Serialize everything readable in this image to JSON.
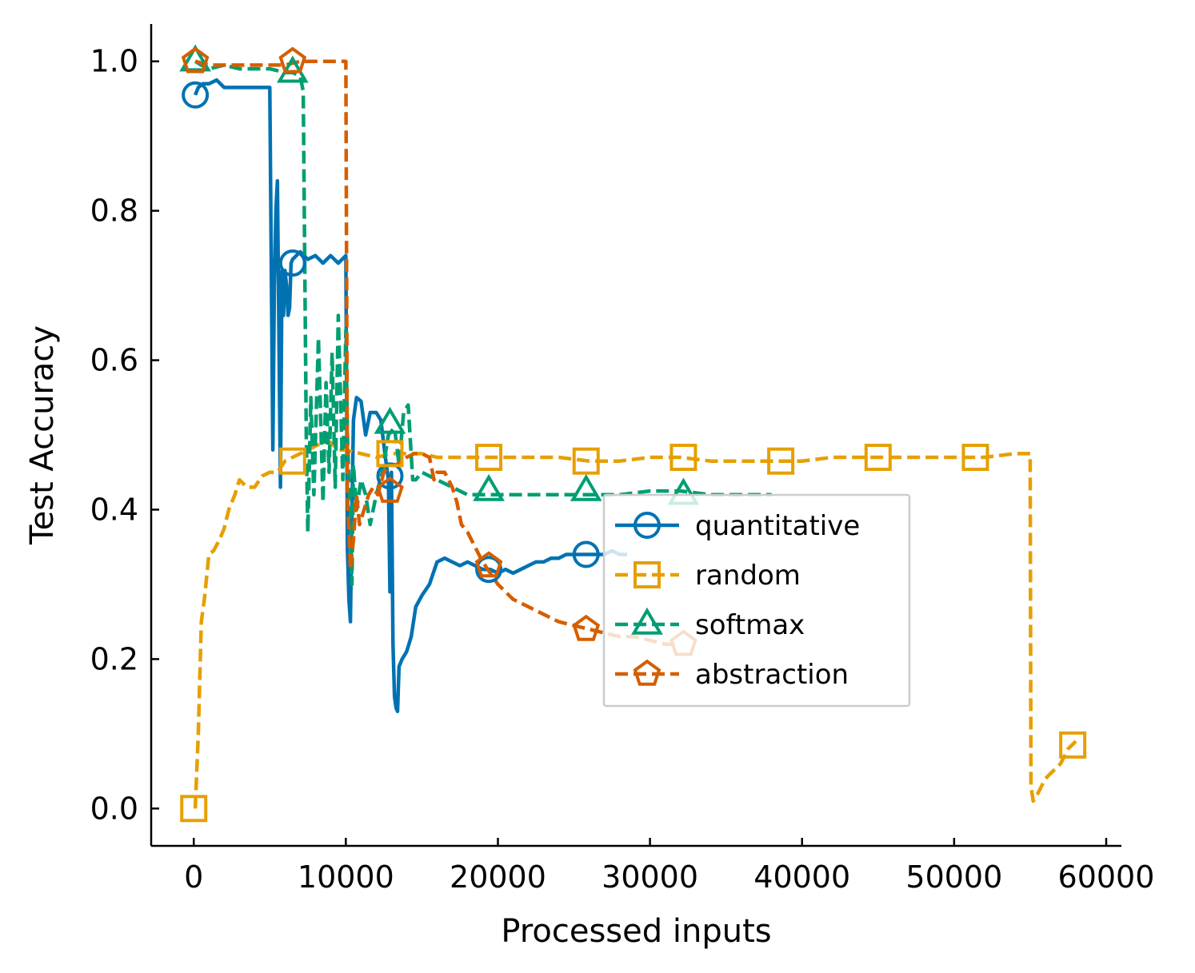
{
  "chart_data": {
    "type": "line",
    "xlabel": "Processed inputs",
    "ylabel": "Test Accuracy",
    "xlim": [
      -2800,
      61000
    ],
    "ylim": [
      -0.05,
      1.05
    ],
    "xticks": [
      0,
      10000,
      20000,
      30000,
      40000,
      50000,
      60000
    ],
    "yticks": [
      0.0,
      0.2,
      0.4,
      0.6,
      0.8,
      1.0
    ],
    "xtick_labels": [
      "0",
      "10000",
      "20000",
      "30000",
      "40000",
      "50000",
      "60000"
    ],
    "ytick_labels": [
      "0.0",
      "0.2",
      "0.4",
      "0.6",
      "0.8",
      "1.0"
    ],
    "grid": false,
    "legend_position": "center-right",
    "series": [
      {
        "name": "quantitative",
        "color": "#0072B2",
        "dash": "solid",
        "marker": "circle",
        "x": [
          100,
          300,
          600,
          1000,
          1500,
          2000,
          2500,
          3000,
          3500,
          4000,
          4500,
          5000,
          5200,
          5300,
          5400,
          5500,
          5700,
          5800,
          5900,
          6000,
          6100,
          6200,
          6300,
          6400,
          6500,
          7000,
          7500,
          8000,
          8500,
          9000,
          9500,
          10000,
          10100,
          10200,
          10300,
          10400,
          10500,
          10700,
          11000,
          11300,
          11600,
          12000,
          12300,
          12600,
          12800,
          12900,
          13000,
          13100,
          13200,
          13300,
          13400,
          13500,
          13700,
          14000,
          14300,
          14600,
          15000,
          15500,
          16000,
          16500,
          17000,
          17500,
          18000,
          18500,
          19000,
          19500,
          20000,
          20500,
          21000,
          21500,
          22000,
          22500,
          23000,
          23500,
          24000,
          24500,
          25000,
          25500,
          26000,
          26500,
          27000,
          27500,
          28000,
          28500
        ],
        "y": [
          0.955,
          0.965,
          0.97,
          0.97,
          0.975,
          0.965,
          0.965,
          0.965,
          0.965,
          0.965,
          0.965,
          0.965,
          0.48,
          0.7,
          0.8,
          0.84,
          0.43,
          0.72,
          0.66,
          0.72,
          0.7,
          0.66,
          0.67,
          0.73,
          0.735,
          0.745,
          0.735,
          0.74,
          0.73,
          0.74,
          0.73,
          0.74,
          0.35,
          0.28,
          0.25,
          0.4,
          0.52,
          0.55,
          0.545,
          0.5,
          0.53,
          0.53,
          0.52,
          0.47,
          0.44,
          0.29,
          0.45,
          0.22,
          0.15,
          0.135,
          0.13,
          0.19,
          0.2,
          0.21,
          0.23,
          0.27,
          0.285,
          0.3,
          0.33,
          0.335,
          0.33,
          0.325,
          0.33,
          0.325,
          0.32,
          0.32,
          0.315,
          0.32,
          0.315,
          0.32,
          0.325,
          0.33,
          0.33,
          0.335,
          0.335,
          0.34,
          0.34,
          0.34,
          0.34,
          0.34,
          0.34,
          0.345,
          0.34,
          0.34
        ],
        "markers_x": [
          100,
          6500,
          12900,
          19400,
          25800
        ],
        "markers_y": [
          0.955,
          0.73,
          0.445,
          0.32,
          0.34
        ]
      },
      {
        "name": "random",
        "color": "#E69F00",
        "dash": "dashed",
        "marker": "square",
        "x": [
          100,
          300,
          500,
          700,
          1000,
          1300,
          1700,
          2000,
          2300,
          2700,
          3000,
          3500,
          4000,
          4500,
          5000,
          5500,
          6000,
          6500,
          7000,
          7500,
          8000,
          8500,
          9000,
          9500,
          10000,
          11000,
          12000,
          13000,
          14000,
          15000,
          16000,
          17000,
          18000,
          19000,
          20000,
          22000,
          24000,
          26000,
          28000,
          30000,
          32000,
          34000,
          36000,
          38000,
          40000,
          42000,
          44000,
          46000,
          48000,
          50000,
          52000,
          54000,
          55000,
          55050,
          55200,
          55500,
          56000,
          57000,
          57500,
          58000
        ],
        "y": [
          0.0,
          0.1,
          0.25,
          0.28,
          0.34,
          0.345,
          0.36,
          0.375,
          0.4,
          0.42,
          0.44,
          0.43,
          0.43,
          0.445,
          0.45,
          0.45,
          0.465,
          0.47,
          0.475,
          0.48,
          0.485,
          0.49,
          0.49,
          0.48,
          0.48,
          0.475,
          0.47,
          0.475,
          0.475,
          0.475,
          0.47,
          0.47,
          0.47,
          0.47,
          0.47,
          0.47,
          0.47,
          0.465,
          0.465,
          0.47,
          0.47,
          0.465,
          0.465,
          0.465,
          0.465,
          0.47,
          0.47,
          0.47,
          0.47,
          0.47,
          0.47,
          0.475,
          0.475,
          0.03,
          0.01,
          0.02,
          0.04,
          0.06,
          0.08,
          0.09
        ],
        "markers_x": [
          0,
          6500,
          12900,
          19400,
          25800,
          32200,
          38600,
          45000,
          51400,
          57800
        ],
        "markers_y": [
          0.0,
          0.465,
          0.475,
          0.47,
          0.465,
          0.47,
          0.465,
          0.47,
          0.47,
          0.085
        ]
      },
      {
        "name": "softmax",
        "color": "#009E73",
        "dash": "dashed",
        "marker": "triangle",
        "x": [
          100,
          500,
          1000,
          2000,
          3000,
          4000,
          5000,
          6000,
          6500,
          7000,
          7200,
          7400,
          7500,
          7700,
          7900,
          8200,
          8500,
          8700,
          8900,
          9100,
          9300,
          9500,
          9800,
          10000,
          10100,
          10200,
          10300,
          10400,
          10500,
          10700,
          11000,
          11300,
          11600,
          12000,
          12400,
          12800,
          13200,
          13500,
          13800,
          14100,
          14400,
          14600,
          15000,
          16000,
          17000,
          18000,
          19000,
          20000,
          22000,
          24000,
          26000,
          28000,
          30000,
          32000,
          34000,
          36000,
          38000
        ],
        "y": [
          1.0,
          0.995,
          0.99,
          0.995,
          0.99,
          0.99,
          0.99,
          0.985,
          0.985,
          0.98,
          0.96,
          0.5,
          0.37,
          0.55,
          0.42,
          0.63,
          0.41,
          0.57,
          0.45,
          0.61,
          0.43,
          0.66,
          0.44,
          0.64,
          0.5,
          0.44,
          0.4,
          0.3,
          0.46,
          0.4,
          0.44,
          0.42,
          0.38,
          0.42,
          0.45,
          0.5,
          0.51,
          0.46,
          0.53,
          0.54,
          0.44,
          0.44,
          0.45,
          0.44,
          0.43,
          0.42,
          0.42,
          0.42,
          0.42,
          0.42,
          0.42,
          0.42,
          0.425,
          0.425,
          0.42,
          0.42,
          0.42
        ],
        "markers_x": [
          100,
          6500,
          12900,
          19400,
          25800,
          32200
        ],
        "markers_y": [
          1.0,
          0.985,
          0.515,
          0.425,
          0.425,
          0.42
        ]
      },
      {
        "name": "abstraction",
        "color": "#D55E00",
        "dash": "dashed",
        "marker": "pentagon",
        "x": [
          100,
          1000,
          2000,
          3000,
          4000,
          5000,
          6000,
          7000,
          8000,
          9000,
          10000,
          10100,
          10300,
          10500,
          10700,
          10900,
          11200,
          11500,
          11800,
          12100,
          12500,
          12900,
          13300,
          13700,
          14000,
          14500,
          15000,
          15500,
          15800,
          16000,
          16500,
          17000,
          17300,
          17600,
          18000,
          18500,
          19000,
          20000,
          21000,
          22000,
          23000,
          24000,
          25000,
          26000,
          27000,
          28000,
          29000,
          30000,
          31000,
          32000
        ],
        "y": [
          1.0,
          0.995,
          0.995,
          0.995,
          0.995,
          0.995,
          0.995,
          1.0,
          1.0,
          1.0,
          1.0,
          0.42,
          0.32,
          0.36,
          0.42,
          0.38,
          0.4,
          0.42,
          0.43,
          0.42,
          0.45,
          0.46,
          0.46,
          0.465,
          0.47,
          0.475,
          0.475,
          0.47,
          0.44,
          0.45,
          0.45,
          0.43,
          0.41,
          0.38,
          0.37,
          0.35,
          0.33,
          0.3,
          0.28,
          0.27,
          0.26,
          0.25,
          0.245,
          0.24,
          0.235,
          0.23,
          0.23,
          0.225,
          0.22,
          0.22
        ],
        "markers_x": [
          100,
          6500,
          12900,
          19400,
          25800,
          32200
        ],
        "markers_y": [
          1.0,
          1.0,
          0.425,
          0.325,
          0.24,
          0.22
        ]
      }
    ]
  }
}
